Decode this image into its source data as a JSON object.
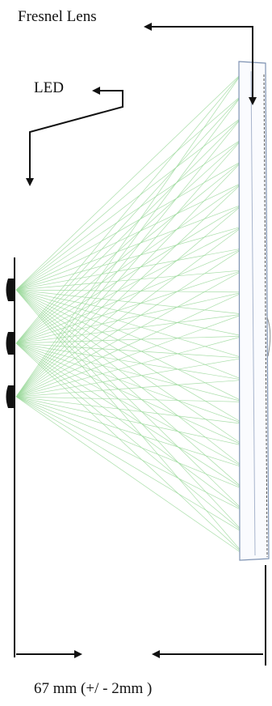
{
  "labels": {
    "lens": "Fresnel Lens",
    "led": "LED",
    "distance": "67 mm  (+/ - 2mm )"
  },
  "colors": {
    "ray": "#9bd99b",
    "ink": "#111111",
    "lens_edge": "#7f93b3"
  },
  "leds": 3
}
